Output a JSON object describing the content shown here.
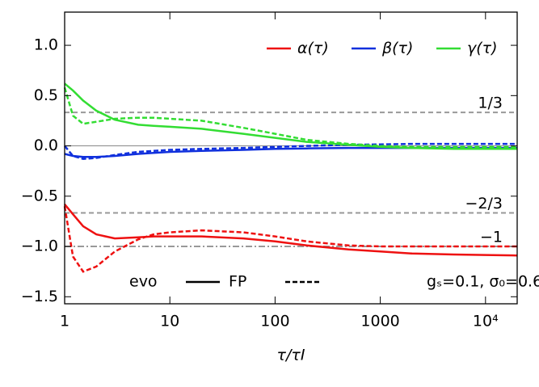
{
  "chart_data": {
    "type": "line",
    "xlabel": "τ/τI",
    "xscale": "log",
    "xlim": [
      1,
      20000
    ],
    "xticks": [
      1,
      10,
      100,
      1000,
      {
        "value": 10000,
        "label": "10⁴"
      }
    ],
    "ylim": [
      -1.57,
      1.33
    ],
    "yticks": [
      {
        "value": -1.5,
        "label": "−1.5"
      },
      {
        "value": -1,
        "label": "−1.0"
      },
      {
        "value": -0.5,
        "label": "−0.5"
      },
      {
        "value": 0,
        "label": "0.0"
      },
      {
        "value": 0.5,
        "label": "0.5"
      },
      {
        "value": 1,
        "label": "1.0"
      }
    ],
    "x": [
      1,
      1.2,
      1.5,
      2,
      3,
      5,
      7,
      10,
      20,
      50,
      100,
      200,
      500,
      1000,
      2000,
      5000,
      10000,
      20000
    ],
    "series": [
      {
        "name": "α(τ)",
        "style": "evo",
        "dashed": false,
        "color": "#ee1111",
        "values": [
          -0.58,
          -0.68,
          -0.8,
          -0.88,
          -0.92,
          -0.91,
          -0.9,
          -0.9,
          -0.9,
          -0.92,
          -0.95,
          -0.99,
          -1.03,
          -1.05,
          -1.07,
          -1.08,
          -1.085,
          -1.09
        ]
      },
      {
        "name": "α(τ)",
        "style": "FP",
        "dashed": true,
        "color": "#ee1111",
        "values": [
          -0.6,
          -1.1,
          -1.25,
          -1.2,
          -1.05,
          -0.93,
          -0.88,
          -0.86,
          -0.84,
          -0.86,
          -0.9,
          -0.95,
          -0.99,
          -1.0,
          -1.0,
          -1.0,
          -1.0,
          -1.0
        ]
      },
      {
        "name": "β(τ)",
        "style": "evo",
        "dashed": false,
        "color": "#1030dd",
        "values": [
          -0.08,
          -0.1,
          -0.11,
          -0.11,
          -0.1,
          -0.08,
          -0.07,
          -0.06,
          -0.05,
          -0.04,
          -0.03,
          -0.025,
          -0.02,
          -0.02,
          -0.02,
          -0.02,
          -0.02,
          -0.02
        ]
      },
      {
        "name": "β(τ)",
        "style": "FP",
        "dashed": true,
        "color": "#1030dd",
        "values": [
          0.0,
          -0.1,
          -0.13,
          -0.12,
          -0.09,
          -0.06,
          -0.05,
          -0.04,
          -0.03,
          -0.02,
          -0.01,
          0.0,
          0.01,
          0.015,
          0.02,
          0.02,
          0.02,
          0.02
        ]
      },
      {
        "name": "γ(τ)",
        "style": "evo",
        "dashed": false,
        "color": "#33dd33",
        "values": [
          0.62,
          0.55,
          0.45,
          0.35,
          0.26,
          0.21,
          0.2,
          0.19,
          0.17,
          0.12,
          0.08,
          0.04,
          0.01,
          -0.01,
          -0.02,
          -0.03,
          -0.03,
          -0.03
        ]
      },
      {
        "name": "γ(τ)",
        "style": "FP",
        "dashed": true,
        "color": "#33dd33",
        "values": [
          0.58,
          0.3,
          0.22,
          0.24,
          0.27,
          0.28,
          0.28,
          0.27,
          0.25,
          0.18,
          0.12,
          0.06,
          0.02,
          0.0,
          -0.01,
          -0.01,
          -0.01,
          -0.01
        ]
      }
    ],
    "hlines": [
      {
        "value": 0,
        "style": "thin"
      },
      {
        "value": 0.3333,
        "label": "1/3",
        "style": "dashed"
      },
      {
        "value": -0.6667,
        "label": "−2/3",
        "style": "dashed"
      },
      {
        "value": -1,
        "label": "−1",
        "style": "dashdot"
      }
    ],
    "annotation": "gₛ=0.1, σ₀=0.6"
  }
}
